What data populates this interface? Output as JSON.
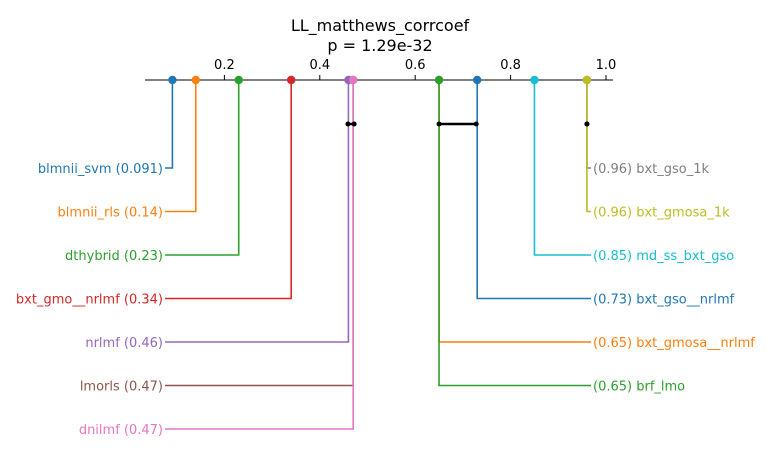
{
  "chart_data": {
    "type": "critical-difference",
    "title": "LL_matthews_corrcoef",
    "subtitle": "p = 1.29e-32",
    "xlim": [
      0.0,
      1.0
    ],
    "ticks": [
      {
        "value": 0.2,
        "label": "0.2"
      },
      {
        "value": 0.4,
        "label": "0.4"
      },
      {
        "value": 0.6,
        "label": "0.6"
      },
      {
        "value": 0.8,
        "label": "0.8"
      },
      {
        "value": 1.0,
        "label": "1.0"
      }
    ],
    "methods": [
      {
        "name": "blmnii_svm",
        "value": 0.091,
        "label": "blmnii_svm (0.091)",
        "side": "left",
        "color": "#1f77b4"
      },
      {
        "name": "blmnii_rls",
        "value": 0.14,
        "label": "blmnii_rls (0.14)",
        "side": "left",
        "color": "#ff7f0e"
      },
      {
        "name": "dthybrid",
        "value": 0.23,
        "label": "dthybrid (0.23)",
        "side": "left",
        "color": "#2ca02c"
      },
      {
        "name": "bxt_gmo__nrlmf",
        "value": 0.34,
        "label": "bxt_gmo__nrlmf (0.34)",
        "side": "left",
        "color": "#d62728"
      },
      {
        "name": "nrlmf",
        "value": 0.46,
        "label": "nrlmf (0.46)",
        "side": "left",
        "color": "#9467bd"
      },
      {
        "name": "lmorls",
        "value": 0.47,
        "label": "lmorls (0.47)",
        "side": "left",
        "color": "#8c564b"
      },
      {
        "name": "dnilmf",
        "value": 0.47,
        "label": "dnilmf (0.47)",
        "side": "left",
        "color": "#e377c2"
      },
      {
        "name": "bxt_gso_1k",
        "value": 0.96,
        "label": "(0.96) bxt_gso_1k",
        "side": "right",
        "color": "#7f7f7f"
      },
      {
        "name": "bxt_gmosa_1k",
        "value": 0.96,
        "label": "(0.96) bxt_gmosa_1k",
        "side": "right",
        "color": "#bcbd22"
      },
      {
        "name": "md_ss_bxt_gso",
        "value": 0.85,
        "label": "(0.85) md_ss_bxt_gso",
        "side": "right",
        "color": "#17becf"
      },
      {
        "name": "bxt_gso__nrlmf",
        "value": 0.73,
        "label": "(0.73) bxt_gso__nrlmf",
        "side": "right",
        "color": "#1f77b4"
      },
      {
        "name": "bxt_gmosa__nrlmf",
        "value": 0.65,
        "label": "(0.65) bxt_gmosa__nrlmf",
        "side": "right",
        "color": "#ff7f0e"
      },
      {
        "name": "brf_lmo",
        "value": 0.65,
        "label": "(0.65) brf_lmo",
        "side": "right",
        "color": "#2ca02c"
      }
    ],
    "groups": [
      {
        "from": 0.459,
        "to": 0.472
      },
      {
        "from": 0.65,
        "to": 0.728
      },
      {
        "from": 0.96,
        "to": 0.96
      }
    ]
  }
}
